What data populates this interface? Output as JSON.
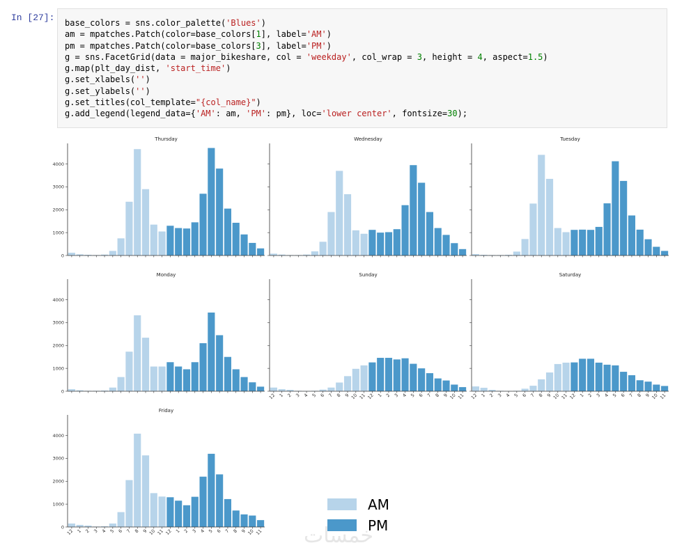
{
  "cell": {
    "prompt": "In [27]:",
    "code_lines": [
      "base_colors = sns.color_palette('Blues')",
      "am = mpatches.Patch(color=base_colors[1], label='AM')",
      "pm = mpatches.Patch(color=base_colors[3], label='PM')",
      "g = sns.FacetGrid(data = major_bikeshare, col = 'weekday', col_wrap = 3, height = 4, aspect=1.5)",
      "g.map(plt_day_dist, 'start_time')",
      "g.set_xlabels('')",
      "g.set_ylabels('')",
      "g.set_titles(col_template=\"{col_name}\")",
      "g.add_legend(legend_data={'AM': am, 'PM': pm}, loc='lower center', fontsize=30);"
    ]
  },
  "colors": {
    "am": "#b7d4ea",
    "pm": "#4b98ca",
    "axis": "#333333"
  },
  "watermark": "خمسات",
  "chart_data": {
    "type": "bar",
    "categories": [
      "12",
      "1",
      "2",
      "3",
      "4",
      "5",
      "6",
      "7",
      "8",
      "9",
      "10",
      "11",
      "12",
      "1",
      "2",
      "3",
      "4",
      "5",
      "6",
      "7",
      "8",
      "9",
      "10",
      "11"
    ],
    "am_count": 12,
    "ylim": [
      0,
      4900
    ],
    "yticks": [
      "0",
      "1000",
      "2000",
      "3000",
      "4000"
    ],
    "legend": {
      "placement": "lower-center",
      "entries": [
        "AM",
        "PM"
      ]
    },
    "facets": [
      {
        "title": "Thursday",
        "values": [
          120,
          50,
          30,
          20,
          40,
          200,
          750,
          2350,
          4650,
          2900,
          1350,
          1050,
          1300,
          1200,
          1180,
          1450,
          2700,
          4700,
          3800,
          2050,
          1430,
          920,
          550,
          310
        ]
      },
      {
        "title": "Wednesday",
        "values": [
          80,
          40,
          20,
          20,
          40,
          180,
          600,
          1900,
          3700,
          2680,
          1100,
          950,
          1120,
          1000,
          1020,
          1150,
          2200,
          3950,
          3180,
          1900,
          1200,
          900,
          540,
          280
        ]
      },
      {
        "title": "Tuesday",
        "values": [
          60,
          30,
          20,
          20,
          30,
          170,
          720,
          2270,
          4400,
          3350,
          1200,
          1020,
          1120,
          1130,
          1120,
          1250,
          2280,
          4120,
          3260,
          1750,
          1130,
          710,
          380,
          200
        ]
      },
      {
        "title": "Monday",
        "values": [
          90,
          40,
          20,
          20,
          30,
          160,
          620,
          1730,
          3320,
          2340,
          1080,
          1080,
          1270,
          1080,
          960,
          1270,
          2100,
          3440,
          2450,
          1500,
          960,
          620,
          390,
          200
        ]
      },
      {
        "title": "Sunday",
        "values": [
          160,
          90,
          60,
          20,
          10,
          20,
          70,
          160,
          380,
          660,
          980,
          1130,
          1260,
          1460,
          1460,
          1390,
          1440,
          1200,
          1000,
          790,
          560,
          470,
          290,
          180
        ]
      },
      {
        "title": "Saturday",
        "values": [
          210,
          150,
          60,
          20,
          10,
          20,
          110,
          240,
          520,
          820,
          1190,
          1250,
          1260,
          1420,
          1420,
          1250,
          1160,
          1130,
          850,
          700,
          480,
          420,
          290,
          230
        ]
      },
      {
        "title": "Friday",
        "values": [
          150,
          90,
          60,
          20,
          30,
          150,
          650,
          2050,
          4080,
          3130,
          1480,
          1330,
          1300,
          1150,
          950,
          1320,
          2200,
          3200,
          2300,
          1220,
          720,
          550,
          500,
          300
        ]
      }
    ]
  }
}
